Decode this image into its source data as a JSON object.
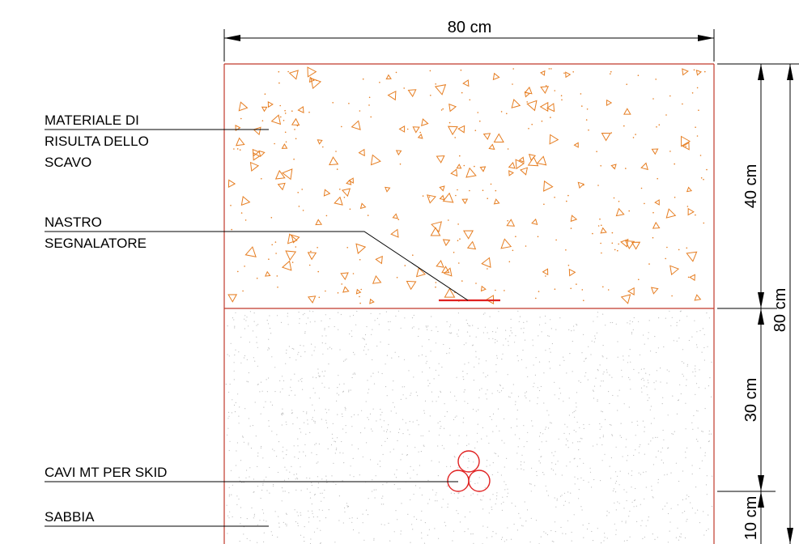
{
  "colors": {
    "trench_outline": "#c0392b",
    "fill_symbol": "#e67e22",
    "tape": "#e02020",
    "cable": "#e02020",
    "sand_speckle": "#bdbdbd",
    "line": "#000000"
  },
  "dimensions": {
    "width": "80 cm",
    "depth_fill": "40 cm",
    "depth_total": "80 cm",
    "depth_sand": "30 cm",
    "depth_bottom": "10 cm"
  },
  "labels": {
    "fill_material": [
      "MATERIALE DI",
      "RISULTA DELLO",
      "SCAVO"
    ],
    "warning_tape": [
      "NASTRO",
      "SEGNALATORE"
    ],
    "cables": "CAVI MT PER SKID",
    "sand": "SABBIA"
  }
}
